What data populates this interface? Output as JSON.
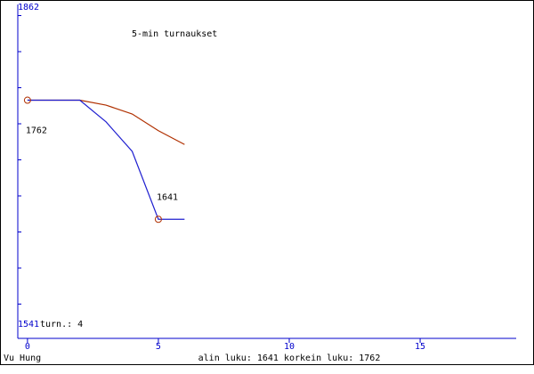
{
  "chart_data": {
    "type": "line",
    "title": "5-min turnaukset",
    "y_top_label": "1862",
    "y_bottom_label": "1541",
    "games_label": "turn.: 4",
    "player": "Vu Hung",
    "footer": "alin luku: 1641  korkein luku: 1762",
    "x": [
      0,
      1,
      2,
      3,
      4,
      5,
      6
    ],
    "series": [
      {
        "color": "#b03000",
        "values": [
          1762,
          1762,
          1762,
          1757,
          1748,
          1731,
          1717
        ]
      },
      {
        "color": "#2020d0",
        "values": [
          1762,
          1762,
          1762,
          1740,
          1710,
          1641,
          1641
        ]
      }
    ],
    "annotations": [
      {
        "text": "1762",
        "x": 0,
        "y": 1762
      },
      {
        "text": "1641",
        "x": 5,
        "y": 1641
      }
    ],
    "xlim": [
      -0.37,
      18.67
    ],
    "ylim": [
      1520,
      1862
    ],
    "xticks": [
      0,
      5,
      10,
      15
    ]
  }
}
